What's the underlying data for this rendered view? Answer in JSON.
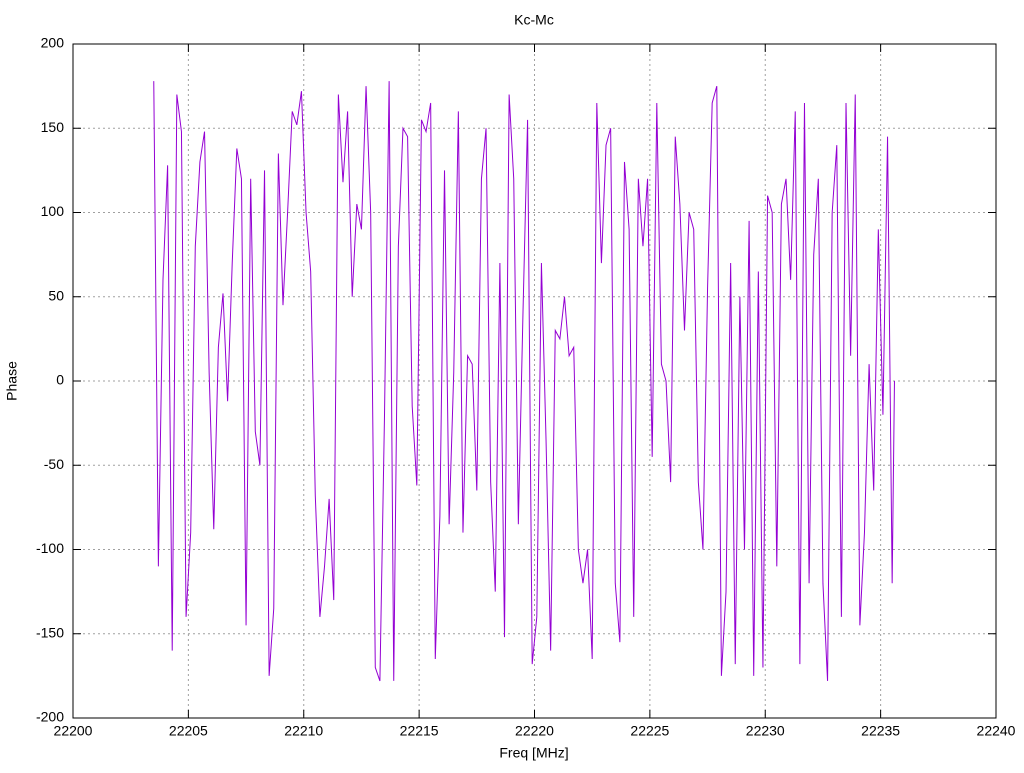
{
  "chart_data": {
    "type": "line",
    "title": "Kc-Mc",
    "x_label": "Freq [MHz]",
    "y_label": "Phase",
    "color": "#9400d3",
    "grid": true,
    "xlim": [
      22200,
      22240
    ],
    "xticks": [
      22200,
      22205,
      22210,
      22215,
      22220,
      22225,
      22230,
      22235,
      22240
    ],
    "ylim": [
      -200,
      200
    ],
    "yticks": [
      -200,
      -150,
      -100,
      -50,
      0,
      50,
      100,
      150,
      200
    ],
    "x": [
      22203.5,
      22203.7,
      22203.9,
      22204.1,
      22204.3,
      22204.5,
      22204.7,
      22204.9,
      22205.1,
      22205.3,
      22205.5,
      22205.7,
      22205.9,
      22206.1,
      22206.3,
      22206.5,
      22206.7,
      22206.9,
      22207.1,
      22207.3,
      22207.5,
      22207.7,
      22207.9,
      22208.1,
      22208.3,
      22208.5,
      22208.7,
      22208.9,
      22209.1,
      22209.3,
      22209.5,
      22209.7,
      22209.9,
      22210.1,
      22210.3,
      22210.5,
      22210.7,
      22210.9,
      22211.1,
      22211.3,
      22211.5,
      22211.7,
      22211.9,
      22212.1,
      22212.3,
      22212.5,
      22212.7,
      22212.9,
      22213.1,
      22213.3,
      22213.5,
      22213.7,
      22213.9,
      22214.1,
      22214.3,
      22214.5,
      22214.7,
      22214.9,
      22215.1,
      22215.3,
      22215.5,
      22215.7,
      22215.9,
      22216.1,
      22216.3,
      22216.5,
      22216.7,
      22216.9,
      22217.1,
      22217.3,
      22217.5,
      22217.7,
      22217.9,
      22218.1,
      22218.3,
      22218.5,
      22218.7,
      22218.9,
      22219.1,
      22219.3,
      22219.5,
      22219.7,
      22219.9,
      22220.1,
      22220.3,
      22220.5,
      22220.7,
      22220.9,
      22221.1,
      22221.3,
      22221.5,
      22221.7,
      22221.9,
      22222.1,
      22222.3,
      22222.5,
      22222.7,
      22222.9,
      22223.1,
      22223.3,
      22223.5,
      22223.7,
      22223.9,
      22224.1,
      22224.3,
      22224.5,
      22224.7,
      22224.9,
      22225.1,
      22225.3,
      22225.5,
      22225.7,
      22225.9,
      22226.1,
      22226.3,
      22226.5,
      22226.7,
      22226.9,
      22227.1,
      22227.3,
      22227.5,
      22227.7,
      22227.9,
      22228.1,
      22228.3,
      22228.5,
      22228.7,
      22228.9,
      22229.1,
      22229.3,
      22229.5,
      22229.7,
      22229.9,
      22230.1,
      22230.3,
      22230.5,
      22230.7,
      22230.9,
      22231.1,
      22231.3,
      22231.5,
      22231.7,
      22231.9,
      22232.1,
      22232.3,
      22232.5,
      22232.7,
      22232.9,
      22233.1,
      22233.3,
      22233.5,
      22233.7,
      22233.9,
      22234.1,
      22234.3,
      22234.5,
      22234.7,
      22234.9,
      22235.1,
      22235.3,
      22235.5,
      22235.6
    ],
    "values": [
      178,
      -110,
      60,
      128,
      -160,
      170,
      148,
      -140,
      -90,
      80,
      130,
      148,
      5,
      -88,
      20,
      52,
      -12,
      70,
      138,
      120,
      -145,
      120,
      -30,
      -50,
      125,
      -175,
      -135,
      135,
      45,
      100,
      160,
      152,
      172,
      100,
      65,
      -68,
      -140,
      -110,
      -70,
      -130,
      170,
      118,
      160,
      50,
      105,
      90,
      175,
      100,
      -170,
      -178,
      -20,
      178,
      -178,
      80,
      150,
      145,
      -15,
      -62,
      155,
      148,
      165,
      -165,
      -80,
      125,
      -85,
      5,
      160,
      -90,
      15,
      10,
      -65,
      120,
      150,
      -60,
      -125,
      70,
      -152,
      170,
      120,
      -85,
      40,
      155,
      -168,
      -140,
      70,
      -35,
      -160,
      30,
      25,
      50,
      15,
      20,
      -100,
      -120,
      -100,
      -165,
      165,
      70,
      140,
      150,
      -120,
      -155,
      130,
      90,
      -140,
      120,
      80,
      120,
      -45,
      165,
      10,
      0,
      -60,
      145,
      105,
      30,
      100,
      90,
      -60,
      -100,
      55,
      165,
      175,
      -175,
      -125,
      70,
      -168,
      50,
      -100,
      95,
      -175,
      65,
      -170,
      110,
      100,
      -110,
      105,
      120,
      60,
      160,
      -168,
      165,
      -120,
      75,
      120,
      -120,
      -178,
      100,
      140,
      -140,
      165,
      15,
      170,
      -145,
      -90,
      10,
      -65,
      90,
      -20,
      145,
      -120,
      0
    ]
  }
}
